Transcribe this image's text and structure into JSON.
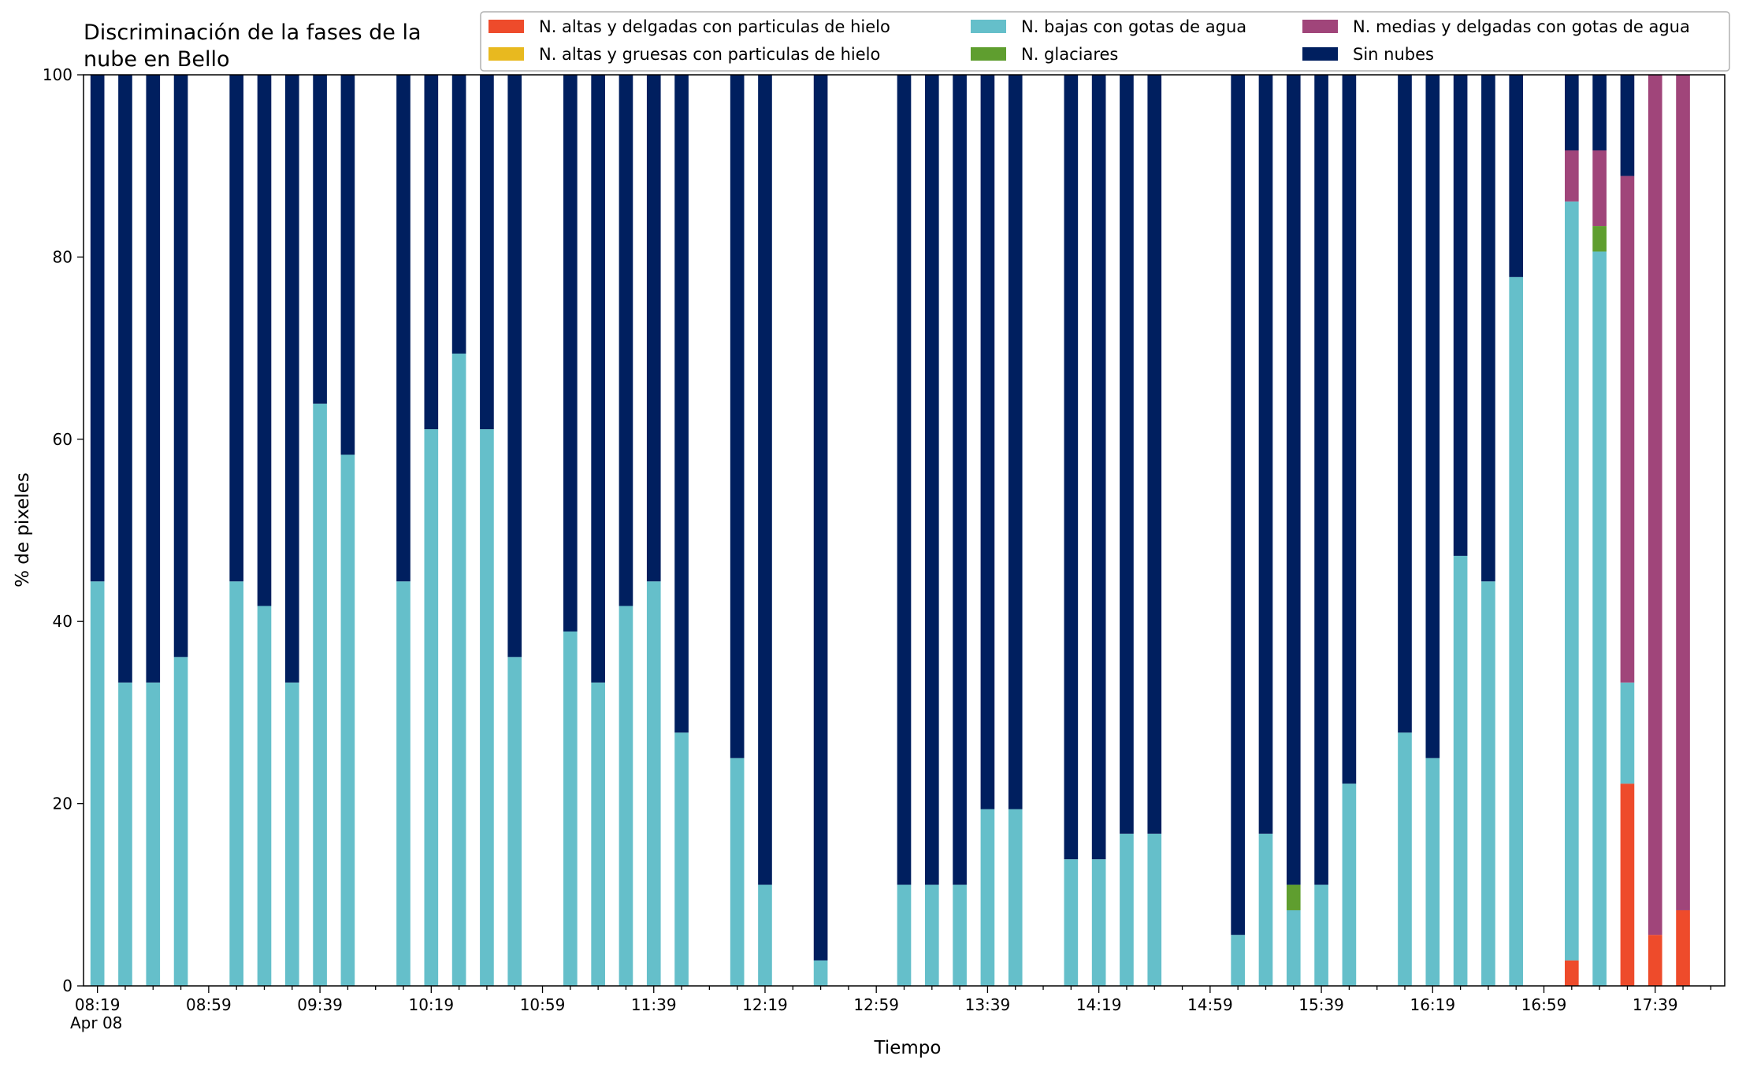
{
  "chart_data": {
    "type": "bar",
    "stacked": true,
    "title_lines": [
      "Discriminación de la fases de la",
      "nube en Bello"
    ],
    "xlabel": "Tiempo",
    "ylabel": "% de pixeles",
    "ylim": [
      0,
      100
    ],
    "yticks": [
      0,
      20,
      40,
      60,
      80,
      100
    ],
    "x_axis": {
      "start": "08:19",
      "step_minutes": 10,
      "num_slots": 59,
      "major_ticks": [
        "08:19",
        "08:59",
        "09:39",
        "10:19",
        "10:59",
        "11:39",
        "12:19",
        "12:59",
        "13:39",
        "14:19",
        "14:59",
        "15:39",
        "16:19",
        "16:59",
        "17:39"
      ],
      "major_every": 4,
      "date_label": "Apr 08"
    },
    "grid": false,
    "legend_position": "top-right",
    "series": [
      {
        "name": "N. altas y delgadas con particulas de hielo",
        "key": "ad",
        "color": "#ee4b2b"
      },
      {
        "name": "N. altas y gruesas con particulas de hielo",
        "key": "ag",
        "color": "#e8b91f"
      },
      {
        "name": "N. bajas con gotas de agua",
        "key": "b",
        "color": "#65bfca"
      },
      {
        "name": "N. glaciares",
        "key": "g",
        "color": "#5f9e2f"
      },
      {
        "name": "N. medias y delgadas con gotas de agua",
        "key": "m",
        "color": "#a0457a"
      },
      {
        "name": "Sin nubes",
        "key": "s",
        "color": "#001f5f"
      }
    ],
    "stack_order": [
      "ad",
      "ag",
      "b",
      "g",
      "m",
      "s"
    ],
    "bars": [
      {
        "time": "08:19",
        "ad": 0,
        "ag": 0,
        "b": 44.4,
        "g": 0,
        "m": 0,
        "s": 55.6
      },
      {
        "time": "08:29",
        "ad": 0,
        "ag": 0,
        "b": 33.3,
        "g": 0,
        "m": 0,
        "s": 66.7
      },
      {
        "time": "08:39",
        "ad": 0,
        "ag": 0,
        "b": 33.3,
        "g": 0,
        "m": 0,
        "s": 66.7
      },
      {
        "time": "08:49",
        "ad": 0,
        "ag": 0,
        "b": 36.1,
        "g": 0,
        "m": 0,
        "s": 63.9
      },
      {
        "time": "09:09",
        "ad": 0,
        "ag": 0,
        "b": 44.4,
        "g": 0,
        "m": 0,
        "s": 55.6
      },
      {
        "time": "09:19",
        "ad": 0,
        "ag": 0,
        "b": 41.7,
        "g": 0,
        "m": 0,
        "s": 58.3
      },
      {
        "time": "09:29",
        "ad": 0,
        "ag": 0,
        "b": 33.3,
        "g": 0,
        "m": 0,
        "s": 66.7
      },
      {
        "time": "09:39",
        "ad": 0,
        "ag": 0,
        "b": 63.9,
        "g": 0,
        "m": 0,
        "s": 36.1
      },
      {
        "time": "09:49",
        "ad": 0,
        "ag": 0,
        "b": 58.3,
        "g": 0,
        "m": 0,
        "s": 41.7
      },
      {
        "time": "10:09",
        "ad": 0,
        "ag": 0,
        "b": 44.4,
        "g": 0,
        "m": 0,
        "s": 55.6
      },
      {
        "time": "10:19",
        "ad": 0,
        "ag": 0,
        "b": 61.1,
        "g": 0,
        "m": 0,
        "s": 38.9
      },
      {
        "time": "10:29",
        "ad": 0,
        "ag": 0,
        "b": 69.4,
        "g": 0,
        "m": 0,
        "s": 30.6
      },
      {
        "time": "10:39",
        "ad": 0,
        "ag": 0,
        "b": 61.1,
        "g": 0,
        "m": 0,
        "s": 38.9
      },
      {
        "time": "10:49",
        "ad": 0,
        "ag": 0,
        "b": 36.1,
        "g": 0,
        "m": 0,
        "s": 63.9
      },
      {
        "time": "11:09",
        "ad": 0,
        "ag": 0,
        "b": 38.9,
        "g": 0,
        "m": 0,
        "s": 61.1
      },
      {
        "time": "11:19",
        "ad": 0,
        "ag": 0,
        "b": 33.3,
        "g": 0,
        "m": 0,
        "s": 66.7
      },
      {
        "time": "11:29",
        "ad": 0,
        "ag": 0,
        "b": 41.7,
        "g": 0,
        "m": 0,
        "s": 58.3
      },
      {
        "time": "11:39",
        "ad": 0,
        "ag": 0,
        "b": 44.4,
        "g": 0,
        "m": 0,
        "s": 55.6
      },
      {
        "time": "11:49",
        "ad": 0,
        "ag": 0,
        "b": 27.8,
        "g": 0,
        "m": 0,
        "s": 72.2
      },
      {
        "time": "12:09",
        "ad": 0,
        "ag": 0,
        "b": 25.0,
        "g": 0,
        "m": 0,
        "s": 75.0
      },
      {
        "time": "12:19",
        "ad": 0,
        "ag": 0,
        "b": 11.1,
        "g": 0,
        "m": 0,
        "s": 88.9
      },
      {
        "time": "12:39",
        "ad": 0,
        "ag": 0,
        "b": 2.8,
        "g": 0,
        "m": 0,
        "s": 97.2
      },
      {
        "time": "13:09",
        "ad": 0,
        "ag": 0,
        "b": 11.1,
        "g": 0,
        "m": 0,
        "s": 88.9
      },
      {
        "time": "13:19",
        "ad": 0,
        "ag": 0,
        "b": 11.1,
        "g": 0,
        "m": 0,
        "s": 88.9
      },
      {
        "time": "13:29",
        "ad": 0,
        "ag": 0,
        "b": 11.1,
        "g": 0,
        "m": 0,
        "s": 88.9
      },
      {
        "time": "13:39",
        "ad": 0,
        "ag": 0,
        "b": 19.4,
        "g": 0,
        "m": 0,
        "s": 80.6
      },
      {
        "time": "13:49",
        "ad": 0,
        "ag": 0,
        "b": 19.4,
        "g": 0,
        "m": 0,
        "s": 80.6
      },
      {
        "time": "14:09",
        "ad": 0,
        "ag": 0,
        "b": 13.9,
        "g": 0,
        "m": 0,
        "s": 86.1
      },
      {
        "time": "14:19",
        "ad": 0,
        "ag": 0,
        "b": 13.9,
        "g": 0,
        "m": 0,
        "s": 86.1
      },
      {
        "time": "14:29",
        "ad": 0,
        "ag": 0,
        "b": 16.7,
        "g": 0,
        "m": 0,
        "s": 83.3
      },
      {
        "time": "14:39",
        "ad": 0,
        "ag": 0,
        "b": 16.7,
        "g": 0,
        "m": 0,
        "s": 83.3
      },
      {
        "time": "15:09",
        "ad": 0,
        "ag": 0,
        "b": 5.6,
        "g": 0,
        "m": 0,
        "s": 94.4
      },
      {
        "time": "15:19",
        "ad": 0,
        "ag": 0,
        "b": 16.7,
        "g": 0,
        "m": 0,
        "s": 83.3
      },
      {
        "time": "15:29",
        "ad": 0,
        "ag": 0,
        "b": 8.3,
        "g": 2.8,
        "m": 0,
        "s": 88.9
      },
      {
        "time": "15:39",
        "ad": 0,
        "ag": 0,
        "b": 11.1,
        "g": 0,
        "m": 0,
        "s": 88.9
      },
      {
        "time": "15:49",
        "ad": 0,
        "ag": 0,
        "b": 22.2,
        "g": 0,
        "m": 0,
        "s": 77.8
      },
      {
        "time": "16:09",
        "ad": 0,
        "ag": 0,
        "b": 27.8,
        "g": 0,
        "m": 0,
        "s": 72.2
      },
      {
        "time": "16:19",
        "ad": 0,
        "ag": 0,
        "b": 25.0,
        "g": 0,
        "m": 0,
        "s": 75.0
      },
      {
        "time": "16:29",
        "ad": 0,
        "ag": 0,
        "b": 47.2,
        "g": 0,
        "m": 0,
        "s": 52.8
      },
      {
        "time": "16:39",
        "ad": 0,
        "ag": 0,
        "b": 44.4,
        "g": 0,
        "m": 0,
        "s": 55.6
      },
      {
        "time": "16:49",
        "ad": 0,
        "ag": 0,
        "b": 77.8,
        "g": 0,
        "m": 0,
        "s": 22.2
      },
      {
        "time": "17:09",
        "ad": 2.8,
        "ag": 0,
        "b": 83.3,
        "g": 0,
        "m": 5.6,
        "s": 8.3
      },
      {
        "time": "17:19",
        "ad": 0,
        "ag": 0,
        "b": 80.6,
        "g": 2.8,
        "m": 8.3,
        "s": 8.3
      },
      {
        "time": "17:29",
        "ad": 22.2,
        "ag": 0,
        "b": 11.1,
        "g": 0,
        "m": 55.6,
        "s": 11.1
      },
      {
        "time": "17:39",
        "ad": 5.6,
        "ag": 0,
        "b": 0,
        "g": 0,
        "m": 94.4,
        "s": 0
      },
      {
        "time": "17:49",
        "ad": 8.3,
        "ag": 0,
        "b": 0,
        "g": 0,
        "m": 91.7,
        "s": 0
      }
    ]
  }
}
